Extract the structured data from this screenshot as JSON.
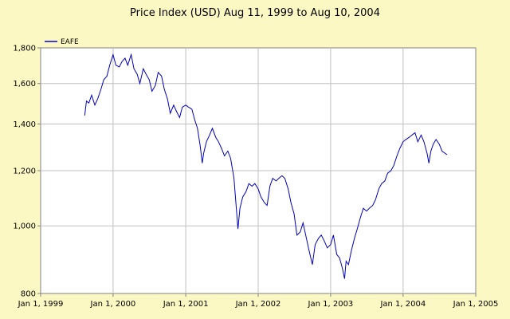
{
  "chart_data": {
    "type": "line",
    "title": "Price Index (USD) Aug 11, 1999 to Aug 10, 2004",
    "xlabel": "",
    "ylabel": "",
    "x_ticks": [
      "Jan 1, 1999",
      "Jan 1, 2000",
      "Jan 1, 2001",
      "Jan 1, 2002",
      "Jan 1, 2003",
      "Jan 1, 2004",
      "Jan 1, 2005"
    ],
    "y_ticks": [
      "800",
      "1,000",
      "1,200",
      "1,400",
      "1,600",
      "1,800"
    ],
    "xlim": [
      "1999-01-01",
      "2005-01-01"
    ],
    "ylim": [
      800,
      1800
    ],
    "y_scale": "log",
    "grid": true,
    "legend_position": "top-left",
    "colors": {
      "background": "#fcf8c4",
      "plot_background": "#ffffff",
      "grid": "#c0c0c0",
      "series": "#0000c0"
    },
    "series": [
      {
        "name": "EAFE",
        "points": [
          [
            "1999-08-11",
            1440
          ],
          [
            "1999-08-20",
            1510
          ],
          [
            "1999-09-01",
            1500
          ],
          [
            "1999-09-15",
            1540
          ],
          [
            "1999-10-01",
            1490
          ],
          [
            "1999-10-15",
            1520
          ],
          [
            "1999-11-01",
            1570
          ],
          [
            "1999-11-15",
            1620
          ],
          [
            "1999-12-01",
            1640
          ],
          [
            "1999-12-15",
            1700
          ],
          [
            "2000-01-01",
            1760
          ],
          [
            "2000-01-15",
            1700
          ],
          [
            "2000-02-01",
            1690
          ],
          [
            "2000-02-15",
            1720
          ],
          [
            "2000-03-01",
            1740
          ],
          [
            "2000-03-15",
            1700
          ],
          [
            "2000-04-01",
            1760
          ],
          [
            "2000-04-15",
            1680
          ],
          [
            "2000-05-01",
            1650
          ],
          [
            "2000-05-15",
            1600
          ],
          [
            "2000-06-01",
            1680
          ],
          [
            "2000-06-15",
            1650
          ],
          [
            "2000-07-01",
            1620
          ],
          [
            "2000-07-15",
            1560
          ],
          [
            "2000-08-01",
            1590
          ],
          [
            "2000-08-15",
            1660
          ],
          [
            "2000-09-01",
            1640
          ],
          [
            "2000-09-15",
            1570
          ],
          [
            "2000-10-01",
            1520
          ],
          [
            "2000-10-15",
            1450
          ],
          [
            "2000-11-01",
            1490
          ],
          [
            "2000-11-15",
            1460
          ],
          [
            "2000-12-01",
            1430
          ],
          [
            "2000-12-15",
            1480
          ],
          [
            "2001-01-01",
            1490
          ],
          [
            "2001-01-15",
            1480
          ],
          [
            "2001-02-01",
            1470
          ],
          [
            "2001-02-15",
            1420
          ],
          [
            "2001-03-01",
            1380
          ],
          [
            "2001-03-15",
            1300
          ],
          [
            "2001-03-25",
            1230
          ],
          [
            "2001-04-01",
            1270
          ],
          [
            "2001-04-15",
            1320
          ],
          [
            "2001-05-01",
            1350
          ],
          [
            "2001-05-15",
            1380
          ],
          [
            "2001-06-01",
            1340
          ],
          [
            "2001-06-15",
            1320
          ],
          [
            "2001-07-01",
            1290
          ],
          [
            "2001-07-15",
            1260
          ],
          [
            "2001-08-01",
            1280
          ],
          [
            "2001-08-15",
            1250
          ],
          [
            "2001-09-01",
            1170
          ],
          [
            "2001-09-21",
            990
          ],
          [
            "2001-10-01",
            1060
          ],
          [
            "2001-10-15",
            1100
          ],
          [
            "2001-11-01",
            1120
          ],
          [
            "2001-11-15",
            1150
          ],
          [
            "2001-12-01",
            1140
          ],
          [
            "2001-12-15",
            1150
          ],
          [
            "2002-01-01",
            1130
          ],
          [
            "2002-01-15",
            1100
          ],
          [
            "2002-02-01",
            1080
          ],
          [
            "2002-02-15",
            1070
          ],
          [
            "2002-03-01",
            1140
          ],
          [
            "2002-03-15",
            1170
          ],
          [
            "2002-04-01",
            1160
          ],
          [
            "2002-04-15",
            1170
          ],
          [
            "2002-05-01",
            1180
          ],
          [
            "2002-05-15",
            1170
          ],
          [
            "2002-06-01",
            1130
          ],
          [
            "2002-06-15",
            1080
          ],
          [
            "2002-07-01",
            1040
          ],
          [
            "2002-07-15",
            970
          ],
          [
            "2002-08-01",
            980
          ],
          [
            "2002-08-15",
            1010
          ],
          [
            "2002-09-01",
            960
          ],
          [
            "2002-09-15",
            920
          ],
          [
            "2002-10-01",
            880
          ],
          [
            "2002-10-15",
            940
          ],
          [
            "2002-11-01",
            960
          ],
          [
            "2002-11-15",
            970
          ],
          [
            "2002-12-01",
            950
          ],
          [
            "2002-12-15",
            930
          ],
          [
            "2003-01-01",
            940
          ],
          [
            "2003-01-15",
            970
          ],
          [
            "2003-02-01",
            910
          ],
          [
            "2003-02-15",
            900
          ],
          [
            "2003-03-01",
            870
          ],
          [
            "2003-03-12",
            840
          ],
          [
            "2003-03-20",
            890
          ],
          [
            "2003-04-01",
            880
          ],
          [
            "2003-04-15",
            920
          ],
          [
            "2003-05-01",
            960
          ],
          [
            "2003-05-15",
            990
          ],
          [
            "2003-06-01",
            1030
          ],
          [
            "2003-06-15",
            1060
          ],
          [
            "2003-07-01",
            1050
          ],
          [
            "2003-07-15",
            1060
          ],
          [
            "2003-08-01",
            1070
          ],
          [
            "2003-08-15",
            1090
          ],
          [
            "2003-09-01",
            1130
          ],
          [
            "2003-09-15",
            1150
          ],
          [
            "2003-10-01",
            1160
          ],
          [
            "2003-10-15",
            1190
          ],
          [
            "2003-11-01",
            1200
          ],
          [
            "2003-11-15",
            1220
          ],
          [
            "2003-12-01",
            1260
          ],
          [
            "2003-12-15",
            1290
          ],
          [
            "2004-01-01",
            1320
          ],
          [
            "2004-01-15",
            1330
          ],
          [
            "2004-02-01",
            1340
          ],
          [
            "2004-02-15",
            1350
          ],
          [
            "2004-03-01",
            1360
          ],
          [
            "2004-03-15",
            1320
          ],
          [
            "2004-04-01",
            1350
          ],
          [
            "2004-04-15",
            1320
          ],
          [
            "2004-05-01",
            1270
          ],
          [
            "2004-05-10",
            1230
          ],
          [
            "2004-05-20",
            1280
          ],
          [
            "2004-06-01",
            1310
          ],
          [
            "2004-06-15",
            1330
          ],
          [
            "2004-07-01",
            1310
          ],
          [
            "2004-07-15",
            1280
          ],
          [
            "2004-08-01",
            1270
          ],
          [
            "2004-08-10",
            1265
          ]
        ]
      }
    ]
  }
}
